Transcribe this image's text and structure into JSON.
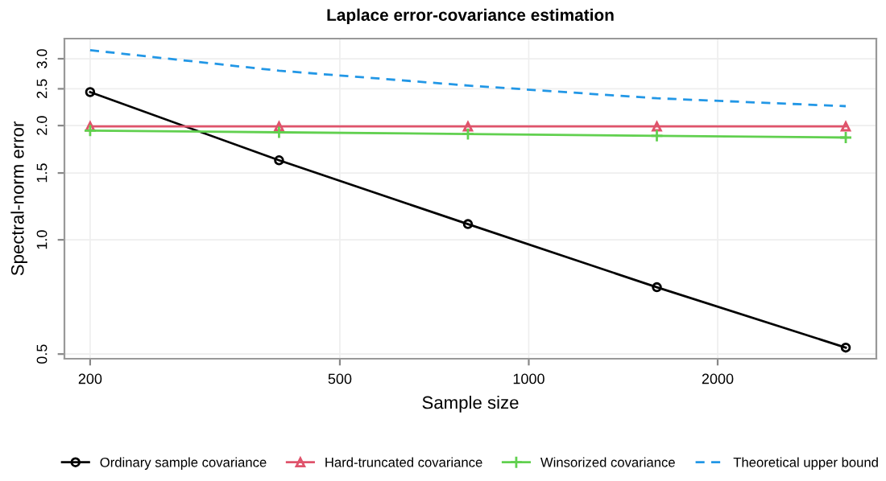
{
  "chart_data": {
    "type": "line",
    "title": "Laplace error-covariance estimation",
    "xlabel": "Sample size",
    "ylabel": "Spectral-norm error",
    "log": "xy",
    "x": [
      200,
      400,
      800,
      1600,
      3200
    ],
    "xlim": [
      182,
      3580
    ],
    "xticks": [
      200,
      500,
      1000,
      2000
    ],
    "ylim": [
      0.486,
      3.39
    ],
    "yticks": [
      {
        "value": 0.5,
        "label": "0.5"
      },
      {
        "value": 1.0,
        "label": "1.0"
      },
      {
        "value": 1.5,
        "label": "1.5"
      },
      {
        "value": 2.0,
        "label": "2.0"
      },
      {
        "value": 2.5,
        "label": "2.5"
      },
      {
        "value": 3.0,
        "label": "3.0"
      }
    ],
    "grid": true,
    "legend": "bottom",
    "series": [
      {
        "name": "Ordinary sample covariance",
        "color": "#000000",
        "marker": "circle",
        "line_style": "solid",
        "values": [
          2.45,
          1.62,
          1.1,
          0.75,
          0.52
        ]
      },
      {
        "name": "Hard-truncated covariance",
        "color": "#df536b",
        "marker": "triangle",
        "line_style": "solid",
        "values": [
          1.99,
          1.99,
          1.99,
          1.99,
          1.99
        ]
      },
      {
        "name": "Winsorized covariance",
        "color": "#61d04f",
        "marker": "cross",
        "line_style": "solid",
        "values": [
          1.94,
          1.92,
          1.9,
          1.88,
          1.86
        ]
      },
      {
        "name": "Theoretical upper bound",
        "color": "#2297e6",
        "marker": "none",
        "line_style": "dashed",
        "values": [
          3.16,
          2.79,
          2.55,
          2.36,
          2.25
        ]
      }
    ]
  }
}
